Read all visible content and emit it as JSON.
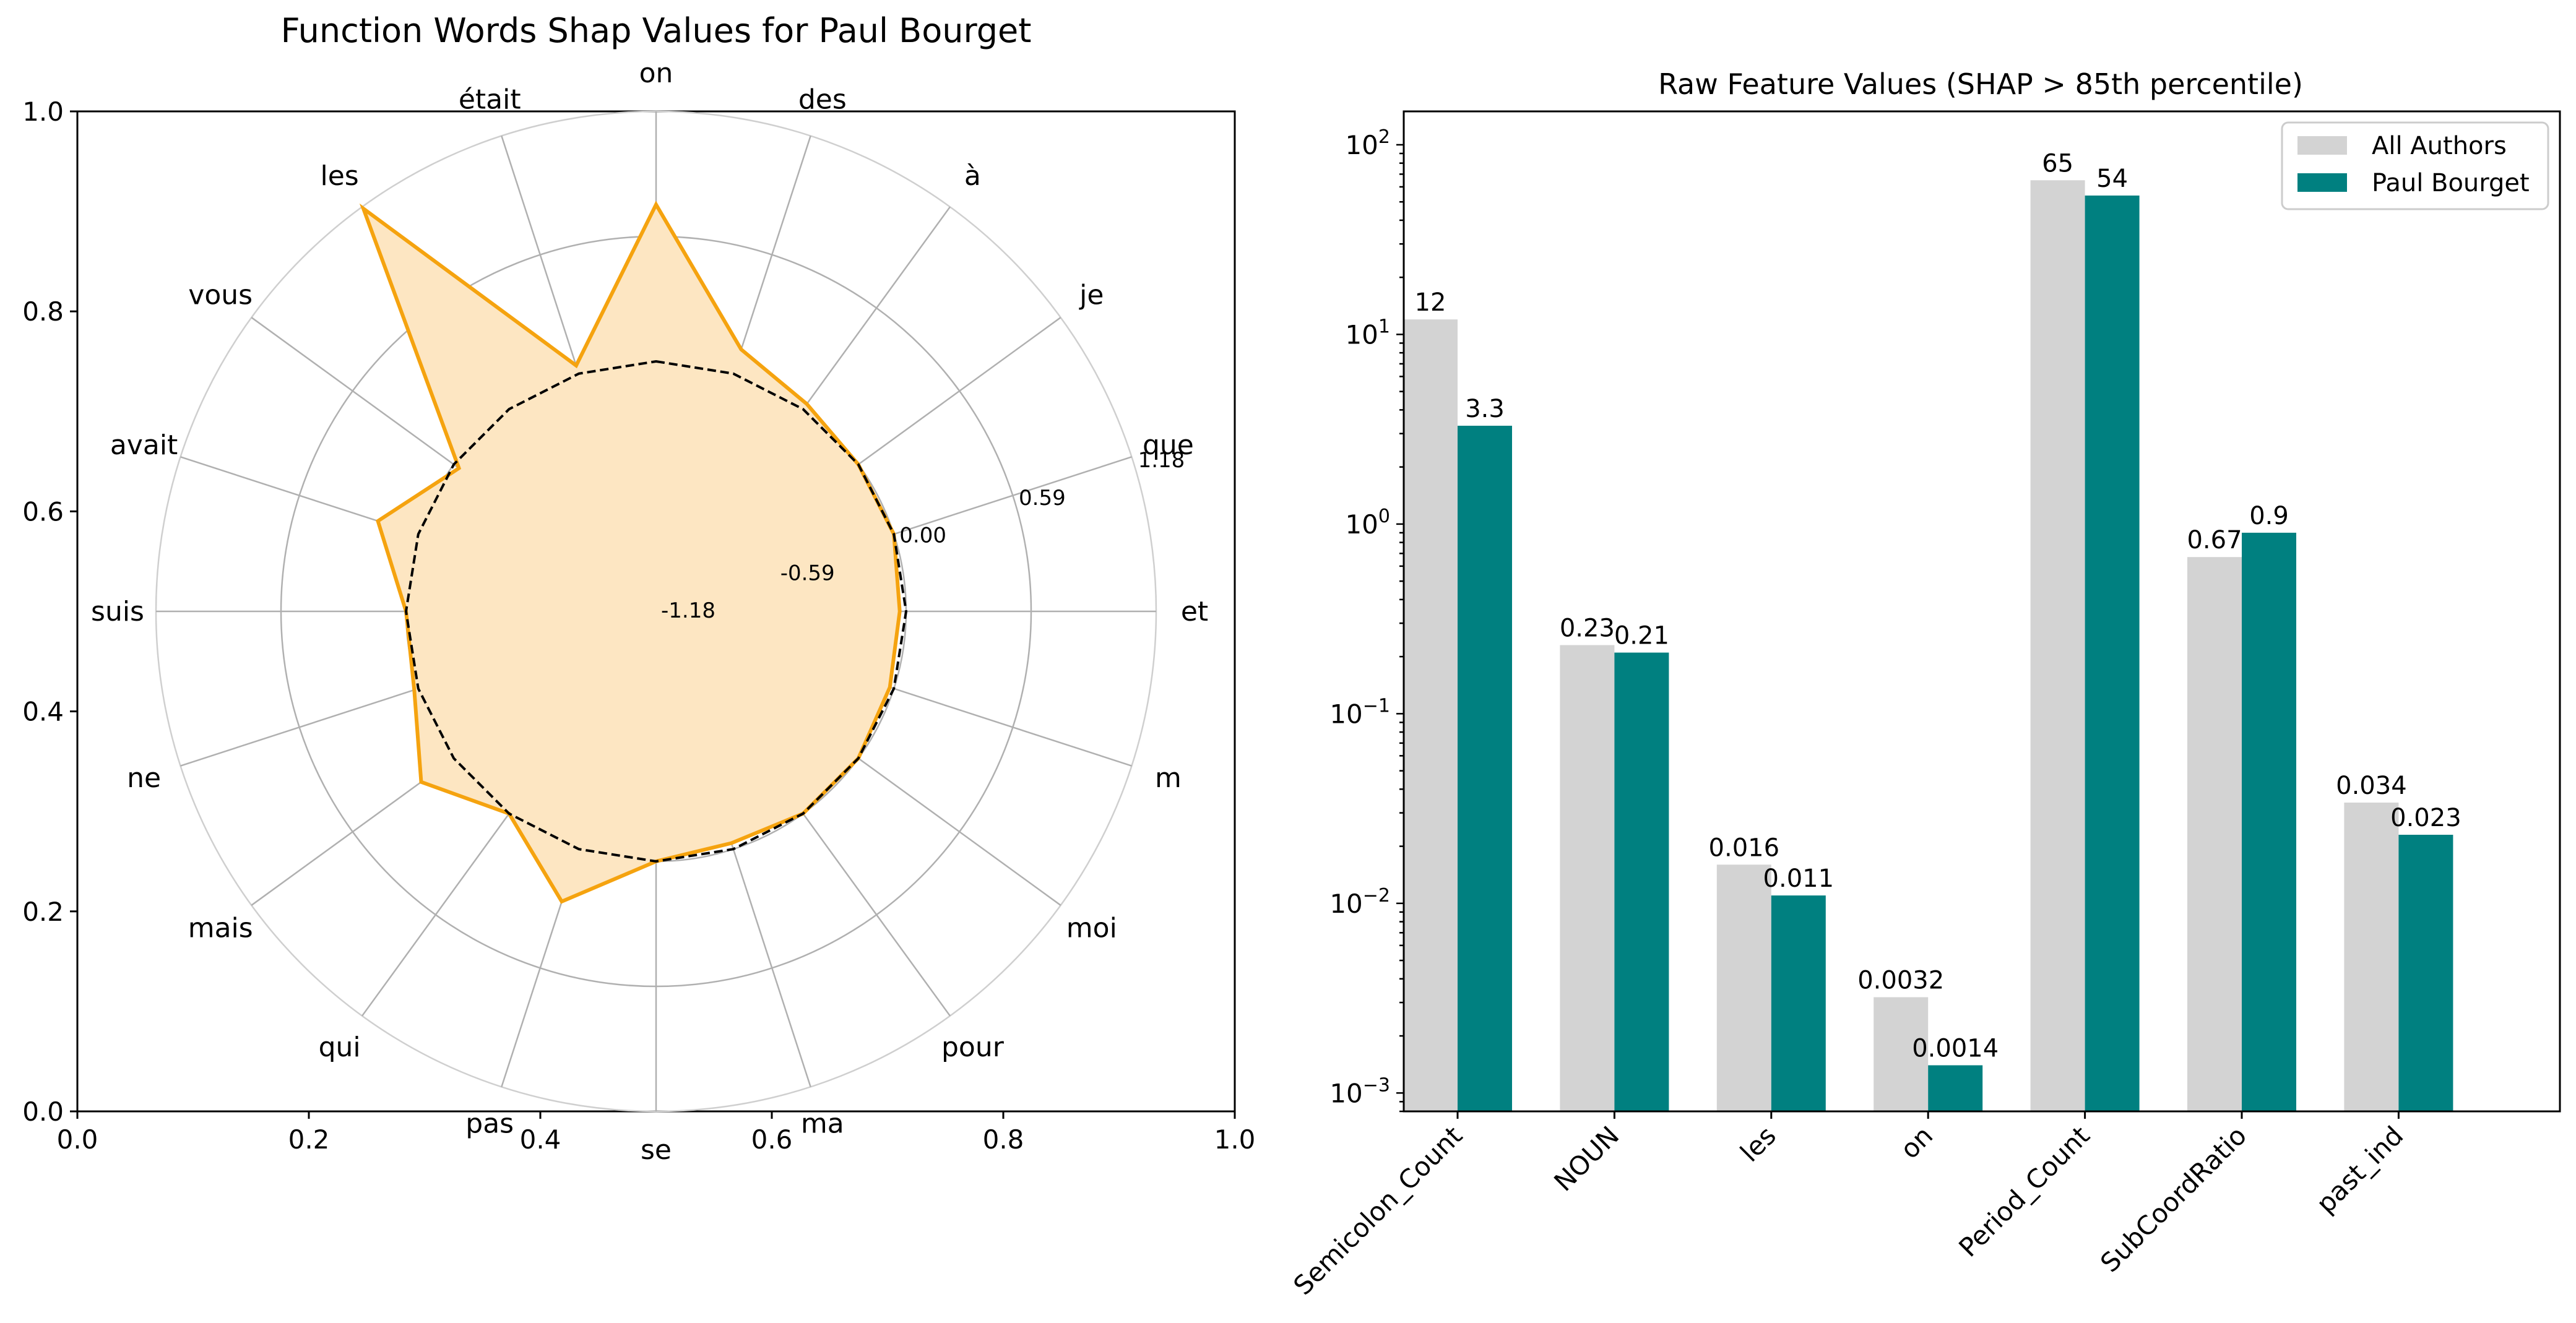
{
  "chart_data": [
    {
      "type": "radar",
      "title": "Function Words Shap Values for Paul Bourget",
      "xlim": [
        0,
        1
      ],
      "ylim": [
        0,
        1
      ],
      "x_ticks": [
        "0.0",
        "0.2",
        "0.4",
        "0.6",
        "0.8",
        "1.0"
      ],
      "y_ticks": [
        "0.0",
        "0.2",
        "0.4",
        "0.6",
        "0.8",
        "1.0"
      ],
      "radial_range": [
        -1.18,
        1.18
      ],
      "radial_ticks": [
        {
          "value": -1.18,
          "label": "-1.18"
        },
        {
          "value": -0.59,
          "label": "-0.59"
        },
        {
          "value": 0.0,
          "label": "0.00"
        },
        {
          "value": 0.59,
          "label": "0.59"
        },
        {
          "value": 1.18,
          "label": "1.18"
        }
      ],
      "categories": [
        "on",
        "des",
        "à",
        "je",
        "que",
        "et",
        "m",
        "moi",
        "pour",
        "ma",
        "se",
        "pas",
        "qui",
        "mais",
        "ne",
        "suis",
        "avait",
        "vous",
        "les",
        "était"
      ],
      "series": [
        {
          "values": [
            0.74,
            0.12,
            0.03,
            0.0,
            0.0,
            -0.03,
            -0.02,
            0.0,
            0.0,
            -0.03,
            0.0,
            0.26,
            0.0,
            0.19,
            0.02,
            0.0,
            0.2,
            -0.03,
            1.17,
            0.04
          ],
          "style": "area",
          "color": "#f5a30f",
          "fill": "#fde6c2"
        },
        {
          "values": [
            0,
            0,
            0,
            0,
            0,
            0,
            0,
            0,
            0,
            0,
            0,
            0,
            0,
            0,
            0,
            0,
            0,
            0,
            0,
            0
          ],
          "style": "dashed",
          "color": "#000000"
        }
      ]
    },
    {
      "type": "bar",
      "title": "Raw Feature Values (SHAP > 85th percentile)",
      "y_scale": "log",
      "ylim": [
        0.0008,
        150
      ],
      "y_ticks": [
        {
          "base": "10",
          "exp": "−3"
        },
        {
          "base": "10",
          "exp": "−2"
        },
        {
          "base": "10",
          "exp": "−1"
        },
        {
          "base": "10",
          "exp": "0"
        },
        {
          "base": "10",
          "exp": "1"
        },
        {
          "base": "10",
          "exp": "2"
        }
      ],
      "categories": [
        "Semicolon_Count",
        "NOUN",
        "les",
        "on",
        "Period_Count",
        "SubCoordRatio",
        "past_ind"
      ],
      "legend_position": "top-right",
      "series": [
        {
          "name": "All Authors",
          "color": "#d3d3d3",
          "values": [
            12,
            0.23,
            0.016,
            0.0032,
            65,
            0.67,
            0.034
          ],
          "labels": [
            "12",
            "0.23",
            "0.016",
            "0.0032",
            "65",
            "0.67",
            "0.034"
          ]
        },
        {
          "name": "Paul Bourget",
          "color": "#008080",
          "values": [
            3.3,
            0.21,
            0.011,
            0.0014,
            54,
            0.9,
            0.023
          ],
          "labels": [
            "3.3",
            "0.21",
            "0.011",
            "0.0014",
            "54",
            "0.9",
            "0.023"
          ]
        }
      ]
    }
  ]
}
